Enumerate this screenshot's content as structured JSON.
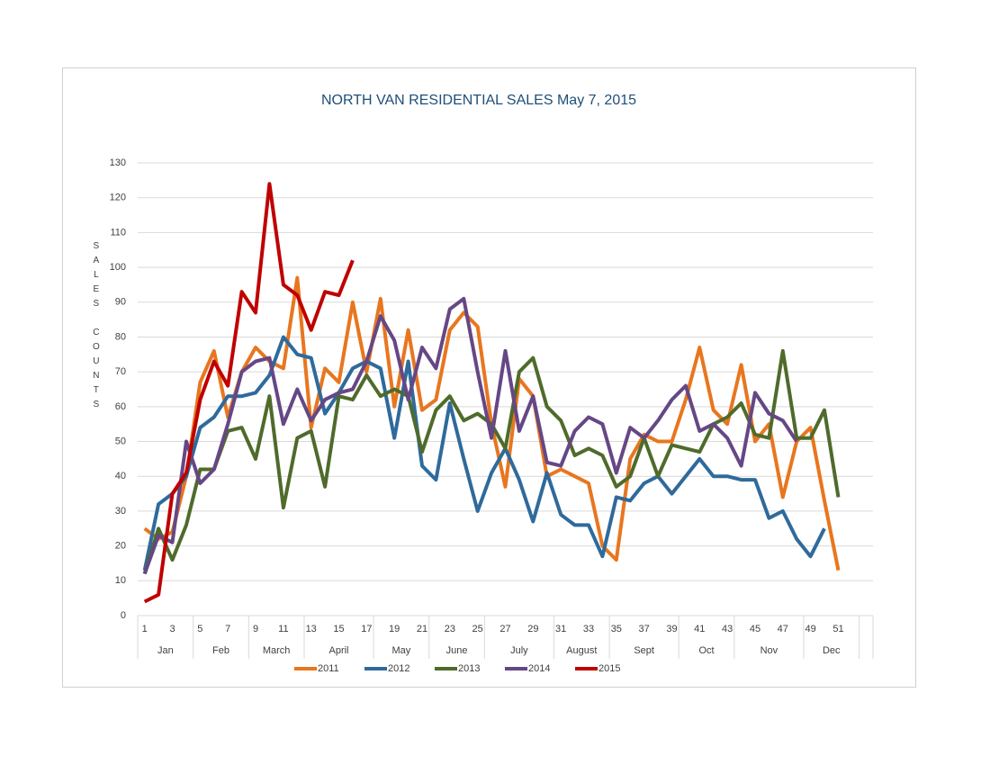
{
  "chart_data": {
    "type": "line",
    "title": "NORTH VAN RESIDENTIAL SALES  May 7, 2015",
    "y_label": "SALES COUNTS",
    "categories": [
      1,
      null,
      3,
      null,
      5,
      null,
      7,
      null,
      9,
      null,
      11,
      null,
      13,
      null,
      15,
      null,
      17,
      null,
      19,
      null,
      21,
      null,
      23,
      null,
      25,
      null,
      27,
      null,
      29,
      null,
      31,
      null,
      33,
      null,
      35,
      null,
      37,
      null,
      39,
      null,
      41,
      null,
      43,
      null,
      45,
      null,
      47,
      null,
      49,
      null,
      51,
      null,
      null
    ],
    "month_groups": [
      {
        "label": "Jan",
        "weeks": [
          1,
          4
        ]
      },
      {
        "label": "Feb",
        "weeks": [
          5,
          8
        ]
      },
      {
        "label": "March",
        "weeks": [
          9,
          12
        ]
      },
      {
        "label": "April",
        "weeks": [
          13,
          17
        ]
      },
      {
        "label": "May",
        "weeks": [
          18,
          21
        ]
      },
      {
        "label": "June",
        "weeks": [
          22,
          25
        ]
      },
      {
        "label": "July",
        "weeks": [
          26,
          30
        ]
      },
      {
        "label": "August",
        "weeks": [
          31,
          34
        ]
      },
      {
        "label": "Sept",
        "weeks": [
          35,
          39
        ]
      },
      {
        "label": "Oct",
        "weeks": [
          40,
          43
        ]
      },
      {
        "label": "Nov",
        "weeks": [
          44,
          48
        ]
      },
      {
        "label": "Dec",
        "weeks": [
          49,
          52
        ]
      }
    ],
    "ylim": [
      0,
      130
    ],
    "yticks": [
      0,
      10,
      20,
      30,
      40,
      50,
      60,
      70,
      80,
      90,
      100,
      110,
      120,
      130
    ],
    "grid": true,
    "legend": "bottom",
    "series": [
      {
        "name": "2011",
        "color": "#e8761f",
        "values": [
          25,
          22,
          24,
          40,
          67,
          76,
          57,
          70,
          77,
          73,
          71,
          97,
          54,
          71,
          67,
          90,
          70,
          91,
          60,
          82,
          59,
          62,
          82,
          87,
          83,
          55,
          37,
          68,
          63,
          40,
          42,
          40,
          38,
          20,
          16,
          45,
          52,
          50,
          50,
          62,
          77,
          59,
          55,
          72,
          50,
          55,
          34,
          50,
          54,
          33,
          13,
          null,
          null
        ]
      },
      {
        "name": "2012",
        "color": "#2f6a9b",
        "values": [
          13,
          32,
          35,
          40,
          54,
          57,
          63,
          63,
          64,
          69,
          80,
          75,
          74,
          58,
          64,
          71,
          73,
          71,
          51,
          73,
          43,
          39,
          61,
          45,
          30,
          41,
          48,
          39,
          27,
          41,
          29,
          26,
          26,
          17,
          34,
          33,
          38,
          40,
          35,
          40,
          45,
          40,
          40,
          39,
          39,
          28,
          30,
          22,
          17,
          25,
          null,
          null,
          null
        ]
      },
      {
        "name": "2013",
        "color": "#4f6b2b",
        "values": [
          12,
          25,
          16,
          26,
          42,
          42,
          53,
          54,
          45,
          63,
          31,
          51,
          53,
          37,
          63,
          62,
          69,
          63,
          65,
          63,
          47,
          59,
          63,
          56,
          58,
          55,
          48,
          70,
          74,
          60,
          56,
          46,
          48,
          46,
          37,
          40,
          51,
          40,
          49,
          48,
          47,
          55,
          57,
          61,
          52,
          51,
          76,
          51,
          51,
          59,
          34,
          null,
          null
        ]
      },
      {
        "name": "2014",
        "color": "#664785",
        "values": [
          12,
          23,
          21,
          50,
          38,
          42,
          55,
          70,
          73,
          74,
          55,
          65,
          56,
          62,
          64,
          65,
          73,
          86,
          79,
          62,
          77,
          71,
          88,
          91,
          70,
          51,
          76,
          53,
          63,
          44,
          43,
          53,
          57,
          55,
          41,
          54,
          51,
          56,
          62,
          66,
          53,
          55,
          51,
          43,
          64,
          58,
          56,
          50,
          null,
          null,
          null,
          null,
          null
        ]
      },
      {
        "name": "2015",
        "color": "#c00000",
        "values": [
          4,
          6,
          35,
          41,
          62,
          73,
          66,
          93,
          87,
          124,
          95,
          92,
          82,
          93,
          92,
          102,
          null,
          null,
          null,
          null,
          null,
          null,
          null,
          null,
          null,
          null,
          null,
          null,
          null,
          null,
          null,
          null,
          null,
          null,
          null,
          null,
          null,
          null,
          null,
          null,
          null,
          null,
          null,
          null,
          null,
          null,
          null,
          null,
          null,
          null,
          null,
          null,
          null
        ]
      }
    ]
  }
}
